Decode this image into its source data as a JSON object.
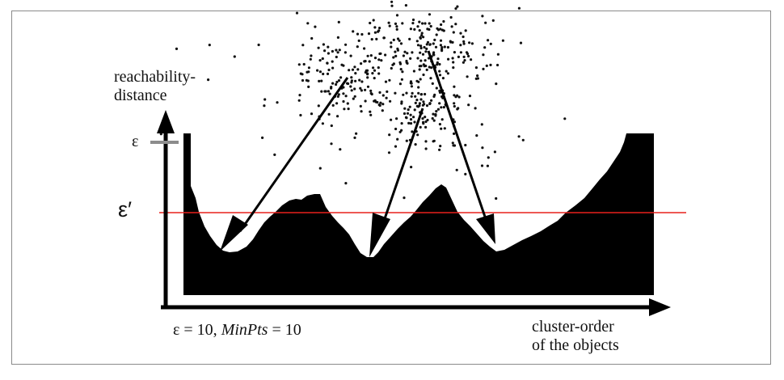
{
  "figure": {
    "y_axis_label_line1": "reachability-",
    "y_axis_label_line2": "distance",
    "x_axis_label_line1": "cluster-order",
    "x_axis_label_line2": "of the objects",
    "epsilon_label": "ε",
    "epsilon_prime_label": "ε′",
    "params": {
      "eps_text": "ε = 10,",
      "minpts_name": "MinPts",
      "minpts_text": " = 10"
    }
  },
  "colors": {
    "plot_fill": "#000000",
    "threshold_line": "#e8201c",
    "epsilon_tick": "#8c8c8c",
    "frame": "#8a8a8a"
  }
}
